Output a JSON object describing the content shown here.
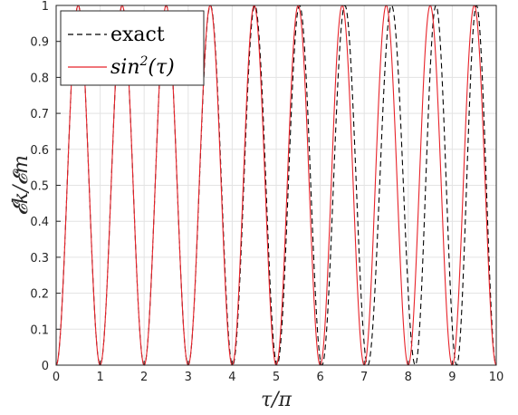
{
  "chart_data": {
    "type": "line",
    "title": "",
    "xlabel": "τ/π",
    "ylabel": "𝓔k/𝓔m",
    "xlim": [
      0,
      10
    ],
    "ylim": [
      0,
      1
    ],
    "grid": true,
    "legend_position": "top-left",
    "x_ticks": [
      "0",
      "1",
      "2",
      "3",
      "4",
      "5",
      "6",
      "7",
      "8",
      "9",
      "10"
    ],
    "y_ticks": [
      "0",
      "0.1",
      "0.2",
      "0.3",
      "0.4",
      "0.5",
      "0.6",
      "0.7",
      "0.8",
      "0.9",
      "1"
    ],
    "series": [
      {
        "name": "exact",
        "style": "dashed",
        "color": "#000000",
        "description": "sin^2 oscillation with slowly increasing period",
        "peaks_x": [
          0.5,
          1.5,
          2.5,
          3.51,
          4.52,
          5.53,
          6.56,
          7.62,
          8.72,
          9.94
        ],
        "zeros_x": [
          0,
          1.0,
          2.0,
          3.0,
          4.01,
          5.02,
          6.04,
          7.08,
          8.16,
          9.1,
          10.0
        ]
      },
      {
        "name": "sin²(τ)",
        "style": "solid",
        "color": "#e8232a",
        "formula": "sin^2(pi*x)"
      }
    ]
  },
  "legend": {
    "exact_label": "exact",
    "sin_label_base": "sin",
    "sin_label_sup": "2",
    "sin_label_arg": "(τ)"
  }
}
